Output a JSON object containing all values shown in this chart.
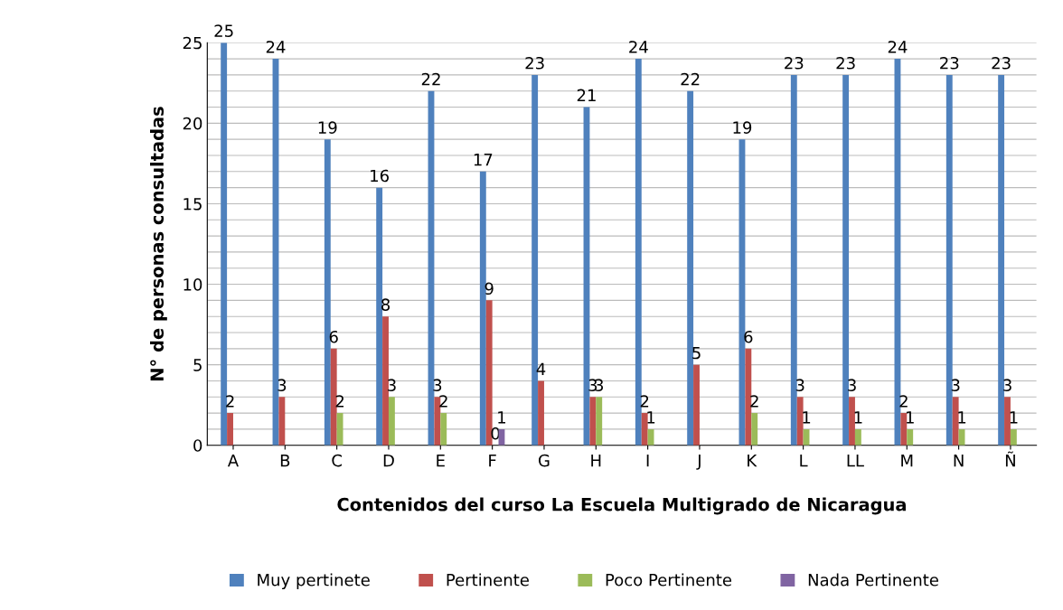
{
  "chart_data": {
    "type": "bar",
    "xlabel": "Contenidos del curso La Escuela Multigrado de Nicaragua",
    "ylabel": "N° de personas consultadas",
    "categories": [
      "A",
      "B",
      "C",
      "D",
      "E",
      "F",
      "G",
      "H",
      "I",
      "J",
      "K",
      "L",
      "LL",
      "M",
      "N",
      "Ñ"
    ],
    "series": [
      {
        "name": "Muy pertinete",
        "color": "#4f81bd",
        "values": [
          25,
          24,
          19,
          16,
          22,
          17,
          23,
          21,
          24,
          22,
          19,
          23,
          23,
          24,
          23,
          23
        ],
        "value_labels": [
          "25",
          "24",
          "19",
          "16",
          "22",
          "17",
          "23",
          "21",
          "24",
          "22",
          "19",
          "23",
          "23",
          "24",
          "23",
          "23"
        ]
      },
      {
        "name": "Pertinente",
        "color": "#c0504d",
        "values": [
          2,
          3,
          6,
          8,
          3,
          9,
          4,
          3,
          2,
          5,
          6,
          3,
          3,
          2,
          3,
          3
        ],
        "value_labels": [
          "2",
          "3",
          "6",
          "8",
          "3",
          "9",
          "4",
          "3",
          "2",
          "5",
          "6",
          "3",
          "3",
          "2",
          "3",
          "3"
        ]
      },
      {
        "name": "Poco Pertinente",
        "color": "#9bbb59",
        "values": [
          null,
          null,
          2,
          3,
          2,
          0,
          null,
          3,
          1,
          null,
          2,
          1,
          1,
          1,
          1,
          1
        ],
        "value_labels": [
          null,
          null,
          "2",
          "3",
          "2",
          "0",
          null,
          "3",
          "1",
          null,
          "2",
          "1",
          "1",
          "1",
          "1",
          "1"
        ]
      },
      {
        "name": "Nada Pertinente",
        "color": "#8064a2",
        "values": [
          null,
          null,
          null,
          null,
          null,
          1,
          null,
          null,
          null,
          null,
          null,
          null,
          null,
          null,
          null,
          null
        ],
        "value_labels": [
          null,
          null,
          null,
          null,
          null,
          "1",
          null,
          null,
          null,
          null,
          null,
          null,
          null,
          null,
          null,
          null
        ]
      }
    ],
    "ylim": [
      0,
      25
    ],
    "yticks": [
      0,
      {
        "value": 1,
        "label": null
      },
      {
        "value": 2,
        "label": null
      },
      {
        "value": 3,
        "label": null
      },
      {
        "value": 4,
        "label": null
      },
      5,
      {
        "value": 6,
        "label": null
      },
      {
        "value": 7,
        "label": null
      },
      {
        "value": 8,
        "label": null
      },
      {
        "value": 9,
        "label": null
      },
      10,
      {
        "value": 11,
        "label": null
      },
      {
        "value": 12,
        "label": null
      },
      {
        "value": 13,
        "label": null
      },
      {
        "value": 14,
        "label": null
      },
      15,
      {
        "value": 16,
        "label": null
      },
      {
        "value": 17,
        "label": null
      },
      {
        "value": 18,
        "label": null
      },
      {
        "value": 19,
        "label": null
      },
      20,
      {
        "value": 21,
        "label": null
      },
      {
        "value": 22,
        "label": null
      },
      {
        "value": 23,
        "label": null
      },
      {
        "value": 24,
        "label": null
      },
      25
    ],
    "grid": "y",
    "legend": "bottom"
  }
}
